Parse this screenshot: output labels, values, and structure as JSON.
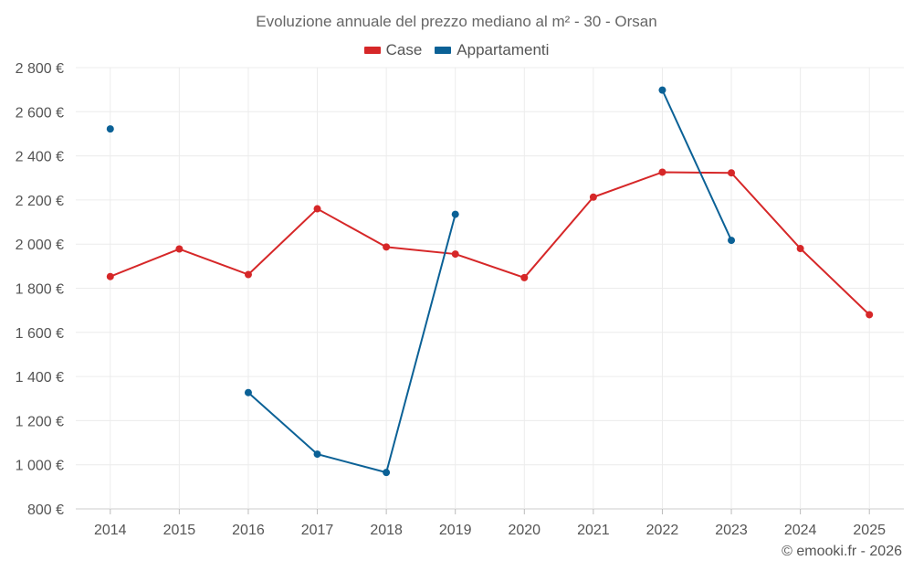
{
  "chart_data": {
    "type": "line",
    "title": "Evoluzione annuale del prezzo mediano al m² - 30 - Orsan",
    "xlabel": "",
    "ylabel": "",
    "categories": [
      "2014",
      "2015",
      "2016",
      "2017",
      "2018",
      "2019",
      "2020",
      "2021",
      "2022",
      "2023",
      "2024",
      "2025"
    ],
    "y_ticks": [
      800,
      1000,
      1200,
      1400,
      1600,
      1800,
      2000,
      2200,
      2400,
      2600,
      2800
    ],
    "y_tick_labels": [
      "800 €",
      "1 000 €",
      "1 200 €",
      "1 400 €",
      "1 600 €",
      "1 800 €",
      "2 000 €",
      "2 200 €",
      "2 400 €",
      "2 600 €",
      "2 800 €"
    ],
    "ylim": [
      800,
      2800
    ],
    "grid": true,
    "legend_position": "top-center",
    "series": [
      {
        "name": "Case",
        "color": "#d62728",
        "values": [
          1853,
          1978,
          1862,
          2160,
          1987,
          1955,
          1848,
          2213,
          2326,
          2323,
          1980,
          1680
        ]
      },
      {
        "name": "Appartamenti",
        "color": "#0b6196",
        "values": [
          2522,
          null,
          1327,
          1048,
          965,
          2135,
          null,
          null,
          2698,
          2017,
          null,
          null
        ]
      }
    ]
  },
  "credit": "© emooki.fr - 2026"
}
